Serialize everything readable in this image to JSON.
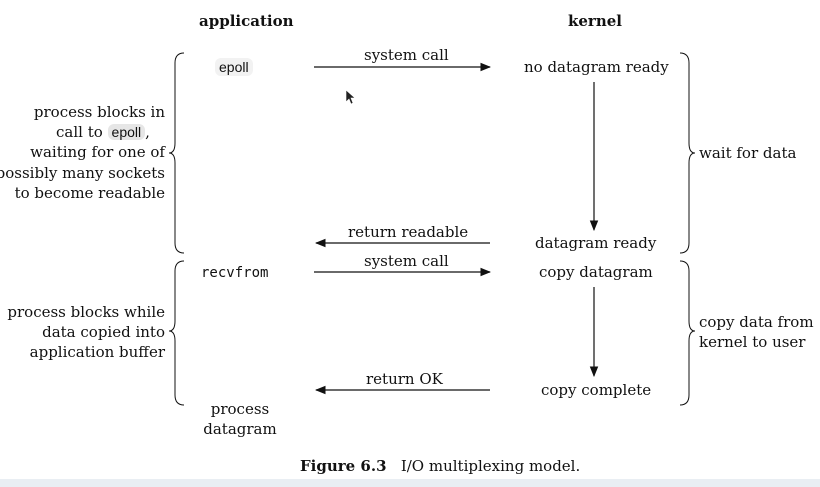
{
  "header": {
    "application": "application",
    "kernel": "kernel"
  },
  "wait_phase": {
    "app_call": "epoll",
    "arrow_call": "system call",
    "kernel_start": "no datagram ready",
    "arrow_return": "return readable",
    "kernel_end": "datagram ready",
    "left_note": [
      "process blocks in",
      "call to",
      "epoll",
      ",",
      "waiting for one of",
      "possibly many sockets",
      "to become readable"
    ],
    "right_note": "wait for data"
  },
  "copy_phase": {
    "app_call": "recvfrom",
    "arrow_call": "system call",
    "kernel_start": "copy datagram",
    "arrow_return": "return OK",
    "kernel_end": "copy complete",
    "left_note": [
      "process blocks while",
      "data copied into",
      "application buffer"
    ],
    "right_note": [
      "copy data from",
      "kernel to user"
    ],
    "app_end": [
      "process",
      "datagram"
    ]
  },
  "caption": {
    "label": "Figure 6.3",
    "text": "I/O multiplexing model."
  }
}
